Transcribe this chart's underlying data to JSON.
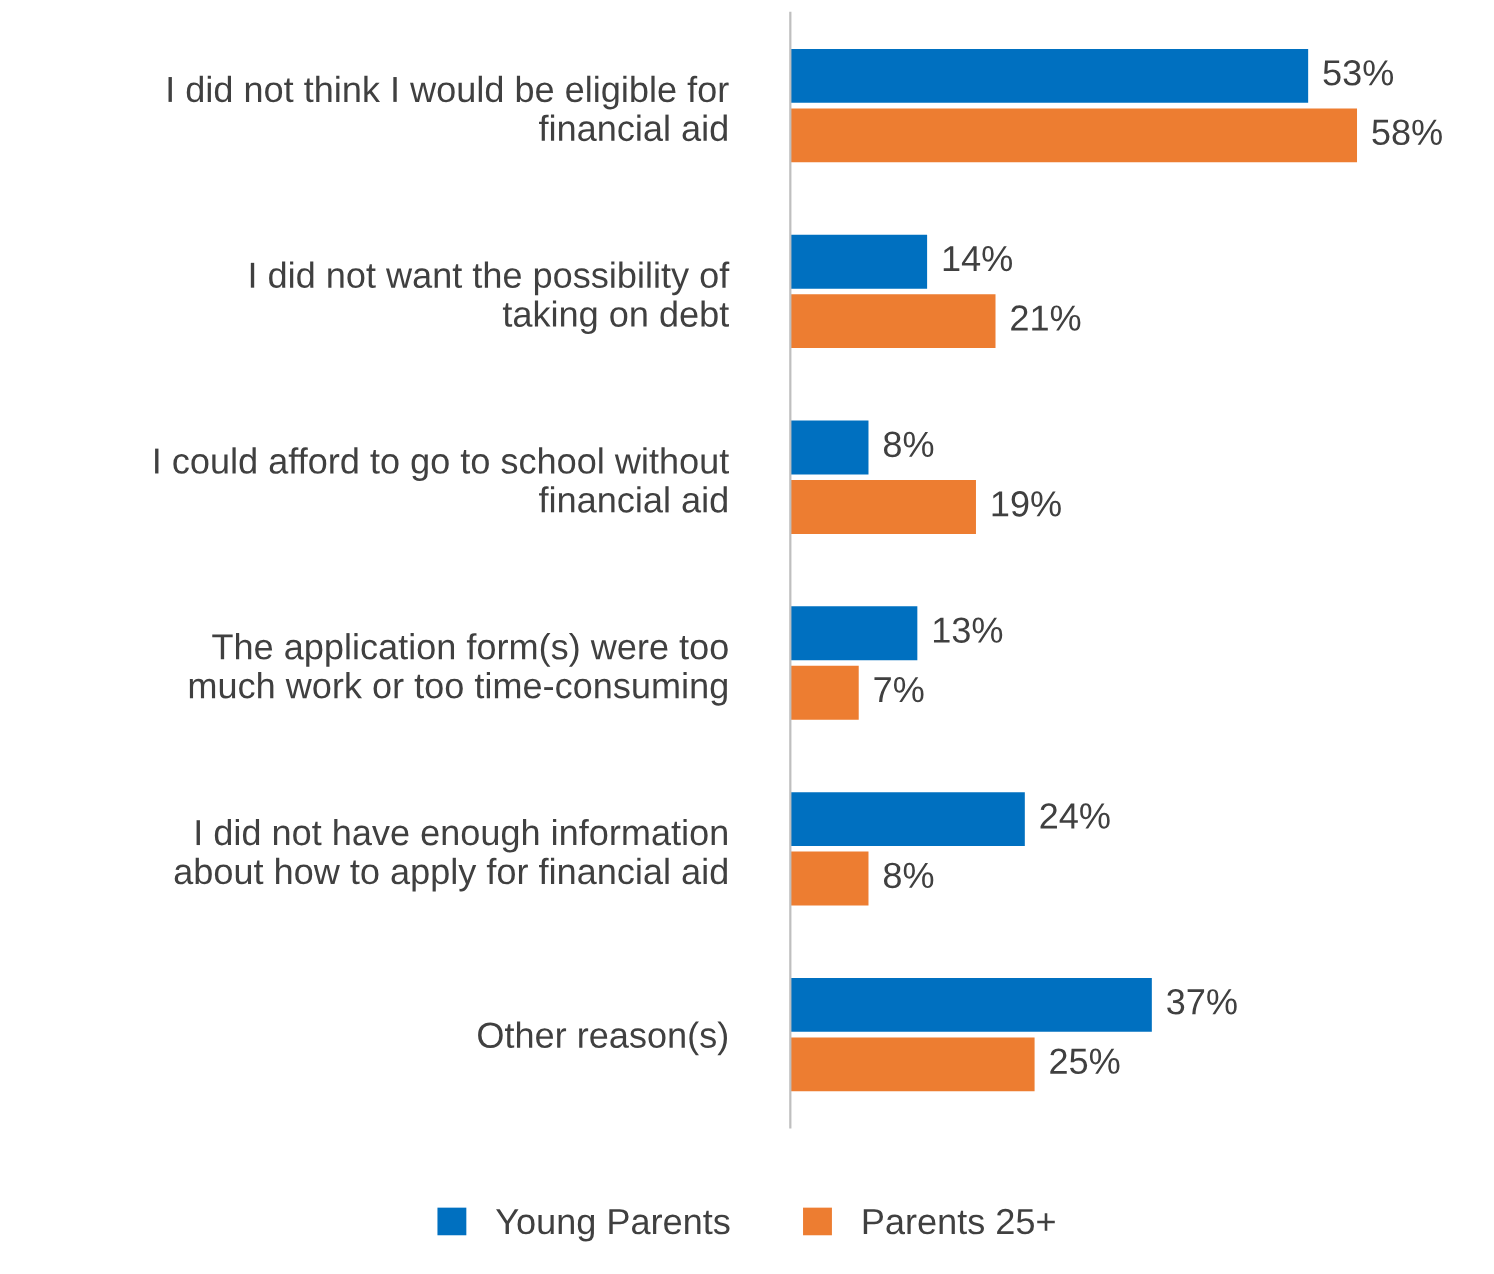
{
  "chart_data": {
    "type": "bar",
    "orientation": "horizontal",
    "categories": [
      "I did not think I would be eligible for\nfinancial aid",
      "I did not want the possibility of\ntaking on debt",
      "I could afford to go to school without\nfinancial aid",
      "The application form(s) were too\nmuch work or too time-consuming",
      "I did not have enough information\nabout how to apply for financial aid",
      "Other reason(s)"
    ],
    "series": [
      {
        "name": "Young Parents",
        "color": "#0070c0",
        "values": [
          53,
          14,
          8,
          13,
          24,
          37
        ],
        "value_labels": [
          "53%",
          "14%",
          "8%",
          "13%",
          "24%",
          "37%"
        ]
      },
      {
        "name": "Parents 25+",
        "color": "#ed7d31",
        "values": [
          58,
          21,
          19,
          7,
          8,
          25
        ],
        "value_labels": [
          "58%",
          "21%",
          "19%",
          "7%",
          "8%",
          "25%"
        ]
      }
    ],
    "legend": "bottom"
  }
}
